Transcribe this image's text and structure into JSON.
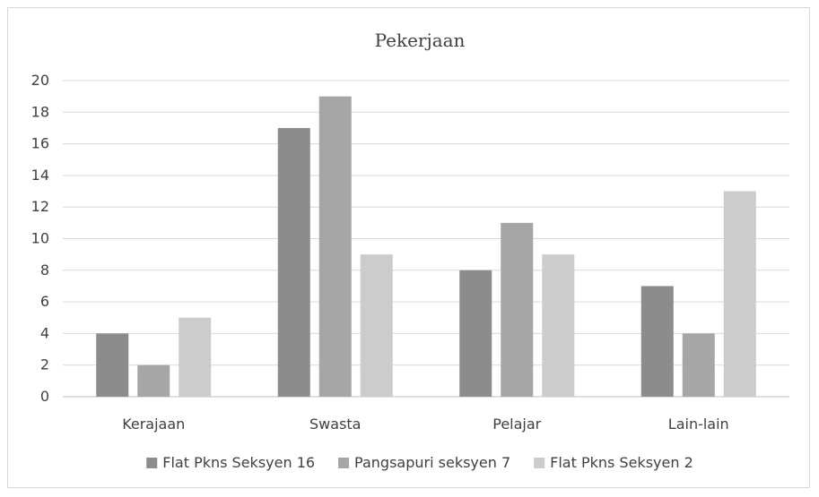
{
  "chart_data": {
    "type": "bar",
    "title": "Pekerjaan",
    "categories": [
      "Kerajaan",
      "Swasta",
      "Pelajar",
      "Lain-lain"
    ],
    "series": [
      {
        "name": "Flat Pkns Seksyen 16",
        "values": [
          4,
          17,
          8,
          7
        ],
        "color": "#8c8c8c"
      },
      {
        "name": "Pangsapuri seksyen 7",
        "values": [
          2,
          19,
          11,
          4
        ],
        "color": "#a6a6a6"
      },
      {
        "name": "Flat Pkns Seksyen 2",
        "values": [
          5,
          9,
          9,
          13
        ],
        "color": "#cccccc"
      }
    ],
    "ylim": [
      0,
      20
    ],
    "yticks": [
      0,
      2,
      4,
      6,
      8,
      10,
      12,
      14,
      16,
      18,
      20
    ],
    "grid": true,
    "legend": "bottom"
  }
}
